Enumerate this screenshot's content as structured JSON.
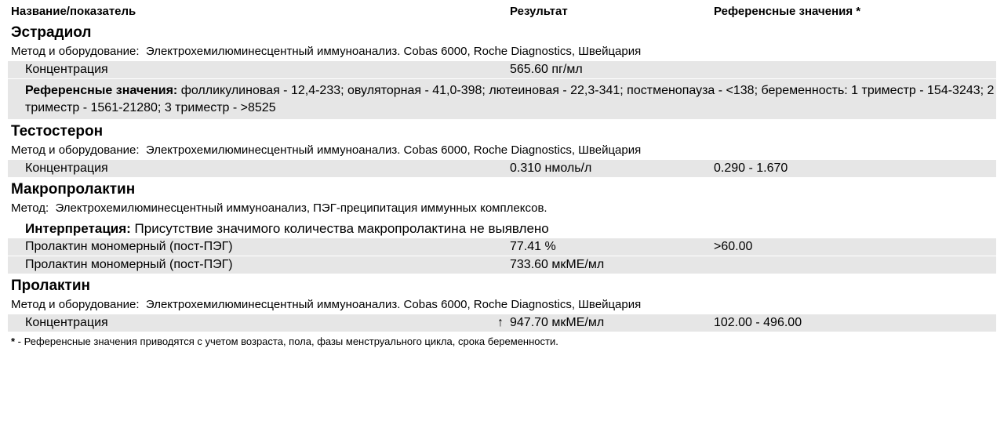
{
  "headers": {
    "name": "Название/показатель",
    "result": "Результат",
    "ref": "Референсные значения *"
  },
  "labels": {
    "method_equip": "Метод и оборудование:",
    "method": "Метод:",
    "ref_values": "Референсные значения:",
    "interpretation": "Интерпретация:"
  },
  "estradiol": {
    "title": "Эстрадиол",
    "method": "Электрохемилюминесцентный иммуноанализ. Cobas 6000, Roche Diagnostics, Швейцария",
    "row": {
      "name": "Концентрация",
      "value": "565.60 пг/мл",
      "ref": ""
    },
    "refnote": "фолликулиновая - 12,4-233; овуляторная - 41,0-398; лютеиновая - 22,3-341; постменопауза - <138; беременность: 1 триместр - 154-3243; 2 триместр - 1561-21280; 3 триместр - >8525"
  },
  "testosterone": {
    "title": "Тестостерон",
    "method": "Электрохемилюминесцентный иммуноанализ. Cobas 6000, Roche Diagnostics, Швейцария",
    "row": {
      "name": "Концентрация",
      "value": "0.310 нмоль/л",
      "ref": "0.290 - 1.670"
    }
  },
  "macroprolactin": {
    "title": "Макропролактин",
    "method": "Электрохемилюминесцентный иммуноанализ, ПЭГ-преципитация иммунных комплексов.",
    "interpretation": "Присутствие значимого количества макропролактина не выявлено",
    "row1": {
      "name": "Пролактин мономерный (пост-ПЭГ)",
      "value": "77.41 %",
      "ref": ">60.00"
    },
    "row2": {
      "name": "Пролактин мономерный (пост-ПЭГ)",
      "value": "733.60 мкМЕ/мл",
      "ref": ""
    }
  },
  "prolactin": {
    "title": "Пролактин",
    "method": "Электрохемилюминесцентный иммуноанализ. Cobas 6000, Roche Diagnostics, Швейцария",
    "row": {
      "name": "Концентрация",
      "arrow": "↑",
      "value": "947.70 мкМЕ/мл",
      "ref": "102.00 - 496.00"
    }
  },
  "footnote_star": "*",
  "footnote": " - Референсные значения приводятся с учетом возраста, пола, фазы менструального цикла, срока беременности."
}
